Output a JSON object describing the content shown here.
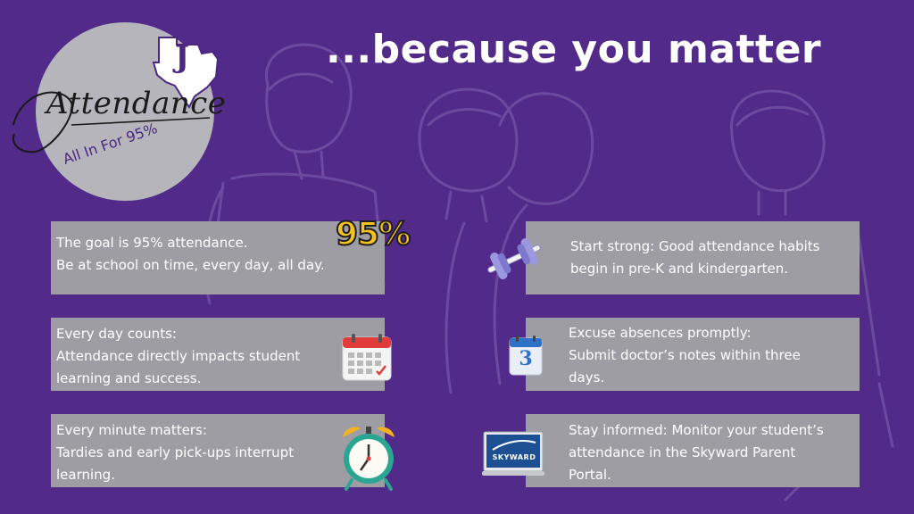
{
  "logo": {
    "script_text": "Attendance",
    "tagline": "All In For 95%",
    "letter": "J"
  },
  "headline": "...because you matter",
  "badge": "95%",
  "cards": [
    {
      "lines": [
        "The goal is 95% attendance.",
        "Be at school on time, every day, all day."
      ],
      "icon": "95-percent-badge"
    },
    {
      "lines": [
        "Start strong: Good attendance habits",
        "begin in pre-K and kindergarten."
      ],
      "icon": "dumbbell-icon"
    },
    {
      "lines": [
        "Every day counts:",
        "Attendance directly impacts student",
        "learning and success."
      ],
      "icon": "calendar-icon"
    },
    {
      "lines": [
        "Excuse absences promptly:",
        "Submit doctor’s notes within three",
        "days."
      ],
      "icon": "calendar-3-icon"
    },
    {
      "lines": [
        "Every minute matters:",
        "Tardies and early pick-ups interrupt",
        "learning."
      ],
      "icon": "alarm-clock-icon"
    },
    {
      "lines": [
        "Stay informed: Monitor your student’s",
        "attendance in the Skyward Parent",
        "Portal."
      ],
      "icon": "skyward-laptop-icon"
    }
  ],
  "calendar_day": "3",
  "skyward_label": "SKYWARD",
  "colors": {
    "background": "#512a8a",
    "card": "#9e9da3",
    "logo_circle": "#b6b5bc",
    "badge_gold": "#f6c21d",
    "text": "#ffffff"
  }
}
